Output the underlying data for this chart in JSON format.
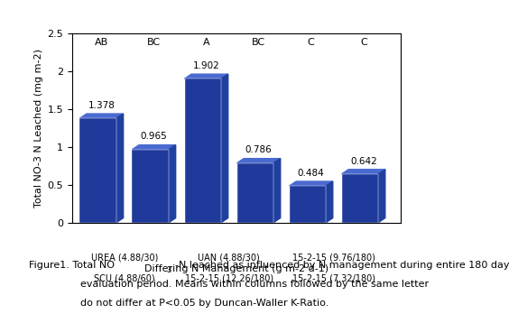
{
  "values": [
    1.378,
    0.965,
    1.902,
    0.786,
    0.484,
    0.642
  ],
  "letters": [
    "AB",
    "BC",
    "A",
    "BC",
    "C",
    "C"
  ],
  "bar_color": "#1F3A9A",
  "bar_edge_color": "#1F3A9A",
  "shadow_color": "#3050C0",
  "ylabel": "Total NO-3 N Leached (mg m-2)",
  "xlabel": "Differing N Management (g m-2 d-1)",
  "ylim": [
    0,
    2.5
  ],
  "yticks": [
    0,
    0.5,
    1,
    1.5,
    2,
    2.5
  ],
  "bar_width": 0.7,
  "x_tick_line1": [
    "UREA (4.88/30)",
    "UAN (4.88/30)",
    "15-2-15 (9.76/180)"
  ],
  "x_tick_line2": [
    "SCU (4.88/60)",
    "15-2-15 (12.26/180)",
    "15-2-15 (7.32/180)"
  ],
  "cap_line1a": "Figure1. Total NO",
  "cap_sub": "3",
  "cap_line1b": "-N leached as influenced by N management during entire 180 day",
  "cap_line2": "evaluation period. Means within columns followed by the same letter",
  "cap_line3": "do not differ at P<0.05 by Duncan-Waller K-Ratio."
}
